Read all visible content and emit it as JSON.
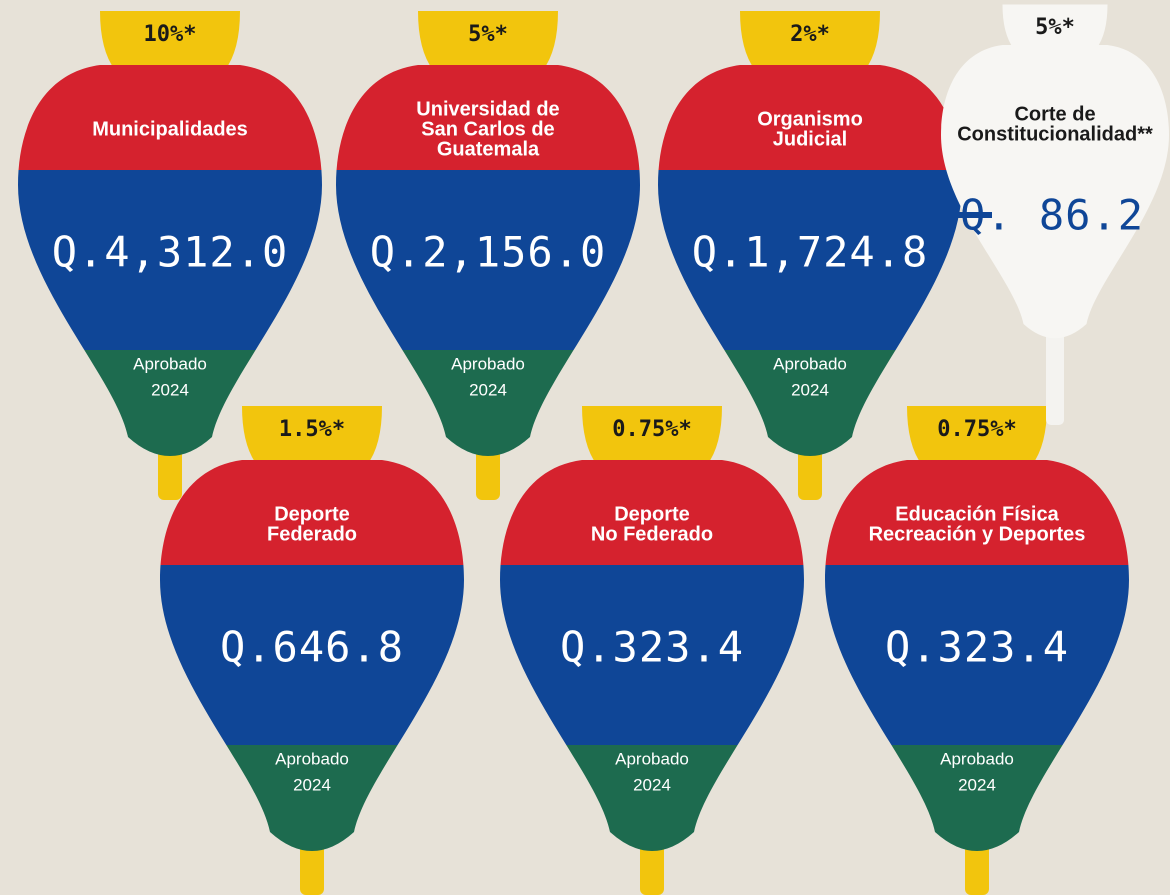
{
  "tops": [
    {
      "percent": "10%*",
      "name_lines": [
        "Municipalidades"
      ],
      "amount": "Q.4,312.0",
      "status_lines": [
        "Aprobado",
        "2024"
      ]
    },
    {
      "percent": "5%*",
      "name_lines": [
        "Universidad de",
        "San Carlos de",
        "Guatemala"
      ],
      "amount": "Q.2,156.0",
      "status_lines": [
        "Aprobado",
        "2024"
      ]
    },
    {
      "percent": "2%*",
      "name_lines": [
        "Organismo",
        "Judicial"
      ],
      "amount": "Q.1,724.8",
      "status_lines": [
        "Aprobado",
        "2024"
      ]
    },
    {
      "percent": "1.5%*",
      "name_lines": [
        "Deporte",
        "Federado"
      ],
      "amount": "Q.646.8",
      "status_lines": [
        "Aprobado",
        "2024"
      ]
    },
    {
      "percent": "0.75%*",
      "name_lines": [
        "Deporte",
        "No Federado"
      ],
      "amount": "Q.323.4",
      "status_lines": [
        "Aprobado",
        "2024"
      ]
    },
    {
      "percent": "0.75%*",
      "name_lines": [
        "Educación Física",
        "Recreación y Deportes"
      ],
      "amount": "Q.323.4",
      "status_lines": [
        "Aprobado",
        "2024"
      ]
    }
  ],
  "white_top": {
    "percent": "5%*",
    "name_lines": [
      "Corte de",
      "Constitucionalidad**"
    ],
    "amount": "Q. 86.2"
  }
}
